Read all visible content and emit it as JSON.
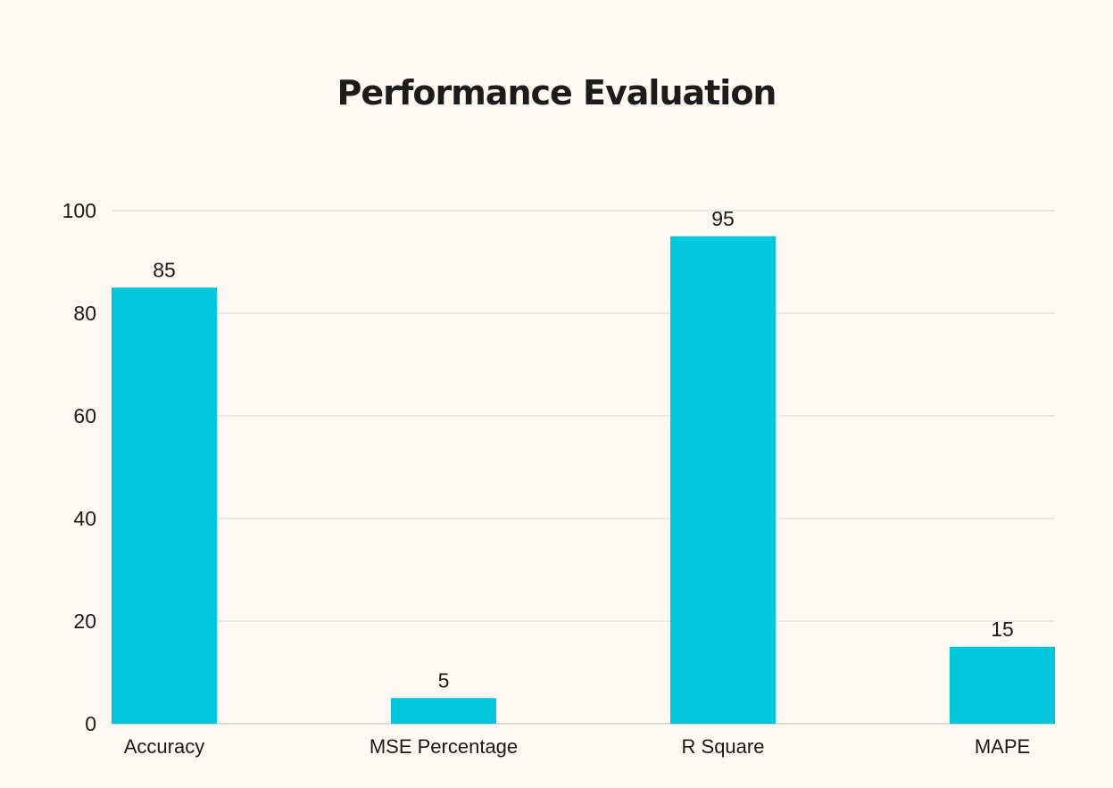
{
  "chart_data": {
    "type": "bar",
    "title": "Performance Evaluation",
    "categories": [
      "Accuracy",
      "MSE Percentage",
      "R Square",
      "MAPE"
    ],
    "values": [
      85,
      5,
      95,
      15
    ],
    "data_labels": [
      "85",
      "5",
      "95",
      "15"
    ],
    "ylim": [
      0,
      100
    ],
    "yticks": [
      0,
      20,
      40,
      60,
      80,
      100
    ],
    "ytick_labels": [
      "0",
      "20",
      "40",
      "60",
      "80",
      "100"
    ],
    "xlabel": "",
    "ylabel": "",
    "grid": true,
    "legend": "none",
    "bar_color": "#00c8dc",
    "grid_color": "#d6d6d6"
  }
}
